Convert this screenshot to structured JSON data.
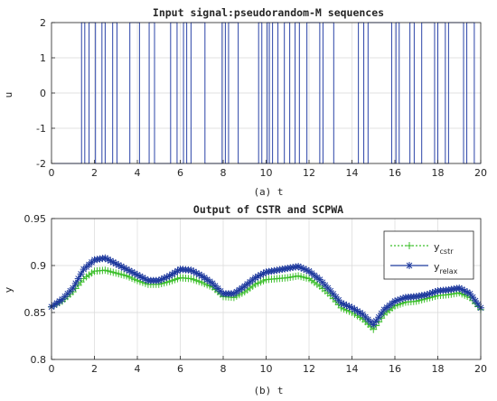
{
  "colors": {
    "signal": "#2b44a8",
    "cstr": "#3cbf2b",
    "relax": "#1f3a9e",
    "axis": "#262626",
    "grid": "#d9d9d9"
  },
  "chart_data": [
    {
      "type": "line",
      "title": "Input signal:pseudorandom-M sequences",
      "xlabel": "(a)  t",
      "ylabel": "u",
      "xlim": [
        0,
        20
      ],
      "ylim": [
        -2,
        2
      ],
      "xticks": [
        0,
        2,
        4,
        6,
        8,
        10,
        12,
        14,
        16,
        18,
        20
      ],
      "yticks": [
        -2,
        -1,
        0,
        1,
        2
      ],
      "grid": true,
      "step_switch_times": [
        1.4,
        1.55,
        1.75,
        2.05,
        2.35,
        2.5,
        2.85,
        3.05,
        3.65,
        4.1,
        4.55,
        4.8,
        5.55,
        5.85,
        6.15,
        6.3,
        6.5,
        7.15,
        7.95,
        8.1,
        8.25,
        8.7,
        9.65,
        9.8,
        10.05,
        10.15,
        10.3,
        10.55,
        10.85,
        11.1,
        11.35,
        11.55,
        11.9,
        12.5,
        12.65,
        13.15,
        14.3,
        14.55,
        14.75,
        15.85,
        16.05,
        16.2,
        16.7,
        16.9,
        17.25,
        17.85,
        18.0,
        18.35,
        18.5,
        19.2,
        19.35,
        19.7
      ],
      "series": [
        {
          "low": -2,
          "high": 2,
          "initial": -2
        }
      ]
    },
    {
      "type": "line",
      "title": "Output of CSTR and SCPWA",
      "xlabel": "(b)  t",
      "ylabel": "y",
      "xlim": [
        0,
        20
      ],
      "ylim": [
        0.8,
        0.95
      ],
      "xticks": [
        0,
        2,
        4,
        6,
        8,
        10,
        12,
        14,
        16,
        18,
        20
      ],
      "yticks": [
        0.8,
        0.85,
        0.9,
        0.95
      ],
      "grid": true,
      "legend_position": "top-right",
      "x": [
        0,
        0.5,
        1.0,
        1.5,
        2.0,
        2.5,
        3.0,
        3.5,
        4.0,
        4.5,
        5.0,
        5.5,
        6.0,
        6.5,
        7.0,
        7.5,
        8.0,
        8.5,
        9.0,
        9.5,
        10.0,
        10.5,
        11.0,
        11.5,
        12.0,
        12.5,
        13.0,
        13.5,
        14.0,
        14.5,
        15.0,
        15.5,
        16.0,
        16.5,
        17.0,
        17.5,
        18.0,
        18.5,
        19.0,
        19.5,
        20.0
      ],
      "series": [
        {
          "name": "cstr",
          "legend_main": "y",
          "legend_sub": "cstr",
          "values": [
            0.856,
            0.862,
            0.872,
            0.886,
            0.894,
            0.895,
            0.892,
            0.889,
            0.884,
            0.88,
            0.88,
            0.883,
            0.887,
            0.886,
            0.882,
            0.877,
            0.867,
            0.866,
            0.872,
            0.88,
            0.885,
            0.886,
            0.887,
            0.889,
            0.886,
            0.878,
            0.868,
            0.855,
            0.85,
            0.843,
            0.832,
            0.848,
            0.857,
            0.861,
            0.862,
            0.865,
            0.868,
            0.869,
            0.871,
            0.866,
            0.853
          ]
        },
        {
          "name": "relax",
          "legend_main": "y",
          "legend_sub": "relax",
          "values": [
            0.856,
            0.864,
            0.876,
            0.896,
            0.906,
            0.908,
            0.902,
            0.896,
            0.89,
            0.884,
            0.884,
            0.889,
            0.896,
            0.895,
            0.889,
            0.881,
            0.87,
            0.87,
            0.878,
            0.887,
            0.893,
            0.895,
            0.897,
            0.899,
            0.894,
            0.885,
            0.873,
            0.86,
            0.855,
            0.848,
            0.837,
            0.853,
            0.862,
            0.866,
            0.867,
            0.869,
            0.873,
            0.874,
            0.876,
            0.87,
            0.855
          ]
        }
      ]
    }
  ]
}
